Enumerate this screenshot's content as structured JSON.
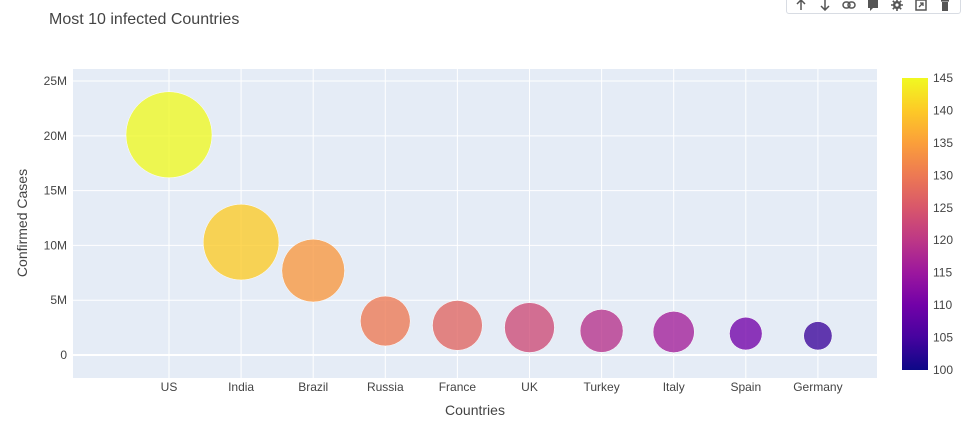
{
  "chart_data": {
    "type": "scatter",
    "title": "Most 10 infected Countries",
    "xlabel": "Countries",
    "ylabel": "Confirmed Cases",
    "categories": [
      "US",
      "India",
      "Brazil",
      "Russia",
      "France",
      "UK",
      "Turkey",
      "Italy",
      "Spain",
      "Germany"
    ],
    "values": [
      20100000,
      10300000,
      7700000,
      3100000,
      2700000,
      2500000,
      2200000,
      2100000,
      1950000,
      1750000
    ],
    "color_values": [
      145,
      140,
      134,
      130,
      127,
      123,
      119,
      116,
      110,
      104
    ],
    "bubble_size": [
      1.0,
      0.88,
      0.73,
      0.58,
      0.58,
      0.58,
      0.5,
      0.48,
      0.38,
      0.33
    ],
    "ylim": [
      -2100000,
      26100000
    ],
    "y_ticks": [
      0,
      5000000,
      10000000,
      15000000,
      20000000,
      25000000
    ],
    "y_tick_labels": [
      "0",
      "5M",
      "10M",
      "15M",
      "20M",
      "25M"
    ],
    "grid": true,
    "colorbar": {
      "range": [
        100,
        145
      ],
      "ticks": [
        100,
        105,
        110,
        115,
        120,
        125,
        130,
        135,
        140,
        145
      ],
      "colorscale": [
        "#0d0887",
        "#46039f",
        "#7201a8",
        "#9c179e",
        "#bd3786",
        "#d8576b",
        "#ed7953",
        "#fb9f3a",
        "#fdca26",
        "#f0f921"
      ],
      "placement": "right"
    }
  },
  "toolbar": {
    "icons": [
      "arrow-up-icon",
      "arrow-down-icon",
      "link-icon",
      "comment-icon",
      "gear-icon",
      "export-icon",
      "trash-icon"
    ]
  }
}
